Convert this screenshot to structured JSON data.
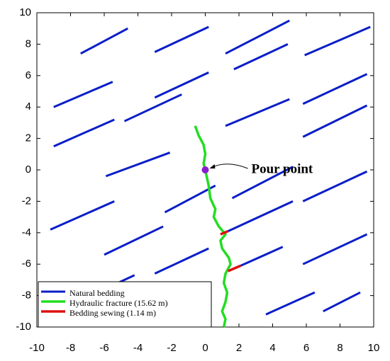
{
  "chart_data": {
    "type": "segments",
    "xlim": [
      -10,
      10
    ],
    "ylim": [
      -10,
      10
    ],
    "xticks": [
      -10,
      -8,
      -6,
      -4,
      -2,
      0,
      2,
      4,
      6,
      8,
      10
    ],
    "yticks": [
      -10,
      -8,
      -6,
      -4,
      -2,
      0,
      2,
      4,
      6,
      8,
      10
    ],
    "legend": "lower left",
    "series": [
      {
        "name": "Natural bedding",
        "color": "#0a1ec8",
        "width": 3,
        "segments": [
          {
            "x": [
              -7.4,
              -4.6
            ],
            "y": [
              7.4,
              9.0
            ]
          },
          {
            "x": [
              -3.0,
              0.2
            ],
            "y": [
              7.5,
              9.1
            ]
          },
          {
            "x": [
              1.2,
              5.0
            ],
            "y": [
              7.4,
              9.5
            ]
          },
          {
            "x": [
              5.9,
              9.8
            ],
            "y": [
              7.3,
              9.1
            ]
          },
          {
            "x": [
              -9.0,
              -5.5
            ],
            "y": [
              4.0,
              5.6
            ]
          },
          {
            "x": [
              -3.0,
              0.2
            ],
            "y": [
              4.6,
              6.2
            ]
          },
          {
            "x": [
              1.7,
              4.9
            ],
            "y": [
              6.4,
              8.0
            ]
          },
          {
            "x": [
              5.8,
              9.6
            ],
            "y": [
              4.2,
              6.1
            ]
          },
          {
            "x": [
              1.2,
              5.0
            ],
            "y": [
              2.8,
              4.5
            ]
          },
          {
            "x": [
              -9.0,
              -5.4
            ],
            "y": [
              1.5,
              3.2
            ]
          },
          {
            "x": [
              -4.8,
              -1.4
            ],
            "y": [
              3.1,
              4.8
            ]
          },
          {
            "x": [
              5.8,
              9.6
            ],
            "y": [
              2.1,
              4.1
            ]
          },
          {
            "x": [
              -5.9,
              -2.1
            ],
            "y": [
              -0.4,
              1.1
            ]
          },
          {
            "x": [
              1.6,
              5.2
            ],
            "y": [
              -1.8,
              0.2
            ]
          },
          {
            "x": [
              5.8,
              9.6
            ],
            "y": [
              -2.0,
              -0.1
            ]
          },
          {
            "x": [
              -9.2,
              -5.4
            ],
            "y": [
              -3.8,
              -2.0
            ]
          },
          {
            "x": [
              -2.4,
              0.6
            ],
            "y": [
              -2.7,
              -1.0
            ]
          },
          {
            "x": [
              -6.0,
              -2.5
            ],
            "y": [
              -5.4,
              -3.6
            ]
          },
          {
            "x": [
              1.35,
              5.2
            ],
            "y": [
              -3.9,
              -2.0
            ]
          },
          {
            "x": [
              5.8,
              9.6
            ],
            "y": [
              -6.0,
              -4.1
            ]
          },
          {
            "x": [
              -3.0,
              0.2
            ],
            "y": [
              -6.6,
              -5.0
            ]
          },
          {
            "x": [
              -6.0,
              -4.2
            ],
            "y": [
              -7.6,
              -6.7
            ]
          },
          {
            "x": [
              2.1,
              4.6
            ],
            "y": [
              -6.1,
              -4.9
            ]
          },
          {
            "x": [
              3.6,
              6.5
            ],
            "y": [
              -9.2,
              -7.8
            ]
          },
          {
            "x": [
              7.0,
              9.2
            ],
            "y": [
              -9.0,
              -7.8
            ]
          }
        ]
      },
      {
        "name": "Hydraulic fracture (15.62 m)",
        "color": "#22dd22",
        "width": 3.5,
        "segments": [
          {
            "x": [
              -0.6,
              -0.4,
              -0.1,
              0,
              -0.1,
              0,
              0.1,
              0.2,
              0.3,
              0.6,
              0.5,
              0.8,
              1.2,
              0.9,
              1.0,
              1.4,
              1.5,
              1.2,
              1.1,
              1.3,
              1.2,
              1.0,
              1.2,
              1.1
            ],
            "y": [
              2.8,
              2.2,
              1.6,
              1.0,
              0.4,
              0,
              -0.5,
              -1.0,
              -1.8,
              -2.5,
              -3.0,
              -3.6,
              -4.1,
              -4.5,
              -5.0,
              -5.6,
              -6.0,
              -6.6,
              -7.2,
              -7.8,
              -8.4,
              -9.0,
              -9.5,
              -10
            ]
          }
        ]
      },
      {
        "name": "Bedding sewing (1.14 m)",
        "color": "#dd1111",
        "width": 3.5,
        "segments": [
          {
            "x": [
              0.9,
              1.35
            ],
            "y": [
              -4.1,
              -3.9
            ]
          },
          {
            "x": [
              1.35,
              2.1
            ],
            "y": [
              -6.44,
              -6.1
            ]
          }
        ]
      }
    ],
    "points": [
      {
        "label": "Pour point",
        "x": 0,
        "y": 0,
        "color": "#8a1ecf"
      }
    ]
  }
}
